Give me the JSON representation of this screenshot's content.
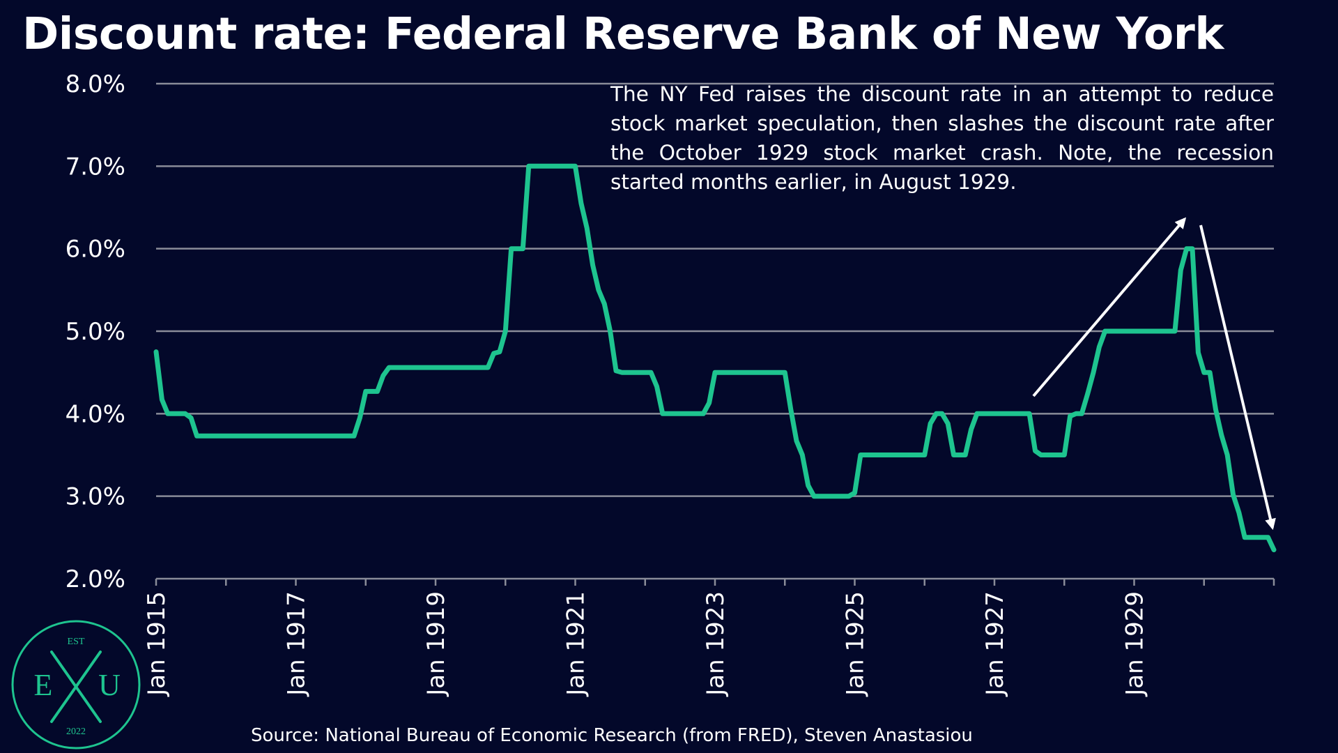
{
  "title": "Discount rate: Federal Reserve Bank of New York",
  "annotation": "The NY Fed raises the discount rate in an attempt to reduce stock market speculation, then slashes the discount rate after the October 1929 stock market crash. Note, the recession started months earlier, in August 1929.",
  "source": "Source: National Bureau of Economic Research (from FRED), Steven Anastasiou",
  "logo": {
    "left": "E",
    "right": "U",
    "top": "EST",
    "bottom": "2022"
  },
  "colors": {
    "background": "#03082a",
    "line": "#1ec48f",
    "grid": "#8a8c99",
    "text": "#ffffff"
  },
  "chart_data": {
    "type": "line",
    "title": "Discount rate: Federal Reserve Bank of New York",
    "xlabel": "",
    "ylabel": "",
    "ylim": [
      2.0,
      8.0
    ],
    "yticks": [
      2.0,
      3.0,
      4.0,
      5.0,
      6.0,
      7.0,
      8.0
    ],
    "ytick_labels": [
      "2.0%",
      "3.0%",
      "4.0%",
      "5.0%",
      "6.0%",
      "7.0%",
      "8.0%"
    ],
    "xlim": [
      "1915-01",
      "1931-01"
    ],
    "xticks": [
      "1915-01",
      "1917-01",
      "1919-01",
      "1921-01",
      "1923-01",
      "1925-01",
      "1927-01",
      "1929-01"
    ],
    "xtick_labels": [
      "Jan 1915",
      "Jan 1917",
      "Jan 1919",
      "Jan 1921",
      "Jan 1923",
      "Jan 1925",
      "Jan 1927",
      "Jan 1929"
    ],
    "minor_xticks": [
      "1916-01",
      "1918-01",
      "1920-01",
      "1922-01",
      "1924-01",
      "1926-01",
      "1928-01",
      "1930-01",
      "1931-01"
    ],
    "grid": true,
    "series": [
      {
        "x": [
          "1915-01",
          "1915-02",
          "1915-03",
          "1915-06",
          "1915-07",
          "1915-08",
          "1917-11",
          "1917-12",
          "1918-01",
          "1918-03",
          "1918-04",
          "1918-05",
          "1919-10",
          "1919-11",
          "1919-12",
          "1920-01",
          "1920-02",
          "1920-04",
          "1920-05",
          "1920-06",
          "1920-12",
          "1921-01",
          "1921-02",
          "1921-03",
          "1921-04",
          "1921-05",
          "1921-06",
          "1921-07",
          "1921-08",
          "1921-09",
          "1922-02",
          "1922-03",
          "1922-04",
          "1922-05",
          "1922-11",
          "1922-12",
          "1923-01",
          "1923-02",
          "1923-03",
          "1924-01",
          "1924-02",
          "1924-03",
          "1924-04",
          "1924-05",
          "1924-06",
          "1924-07",
          "1924-12",
          "1925-01",
          "1925-02",
          "1926-01",
          "1926-02",
          "1926-03",
          "1926-04",
          "1926-05",
          "1926-06",
          "1926-07",
          "1926-08",
          "1926-09",
          "1926-10",
          "1927-07",
          "1927-08",
          "1927-09",
          "1928-01",
          "1928-02",
          "1928-03",
          "1928-04",
          "1928-05",
          "1928-06",
          "1928-07",
          "1928-08",
          "1929-07",
          "1929-08",
          "1929-09",
          "1929-10",
          "1929-11",
          "1929-12",
          "1930-01",
          "1930-02",
          "1930-03",
          "1930-04",
          "1930-05",
          "1930-06",
          "1930-07",
          "1930-08",
          "1930-09",
          "1930-12",
          "1931-01"
        ],
        "values": [
          4.75,
          4.17,
          4.0,
          4.0,
          3.95,
          3.73,
          3.73,
          3.95,
          4.27,
          4.27,
          4.46,
          4.56,
          4.56,
          4.73,
          4.75,
          5.0,
          6.0,
          6.0,
          7.0,
          7.0,
          7.0,
          7.0,
          6.55,
          6.25,
          5.8,
          5.5,
          5.33,
          5.0,
          4.52,
          4.5,
          4.5,
          4.33,
          4.0,
          4.0,
          4.0,
          4.13,
          4.5,
          4.5,
          4.5,
          4.5,
          4.06,
          3.67,
          3.5,
          3.13,
          3.0,
          3.0,
          3.0,
          3.04,
          3.5,
          3.5,
          3.88,
          4.0,
          4.0,
          3.88,
          3.5,
          3.5,
          3.5,
          3.81,
          4.0,
          4.0,
          3.55,
          3.5,
          3.5,
          3.97,
          4.0,
          4.0,
          4.24,
          4.5,
          4.81,
          5.0,
          5.0,
          5.0,
          5.74,
          6.0,
          6.0,
          4.74,
          4.5,
          4.5,
          4.05,
          3.74,
          3.5,
          3.02,
          2.8,
          2.5,
          2.5,
          2.5,
          2.35
        ]
      }
    ]
  }
}
